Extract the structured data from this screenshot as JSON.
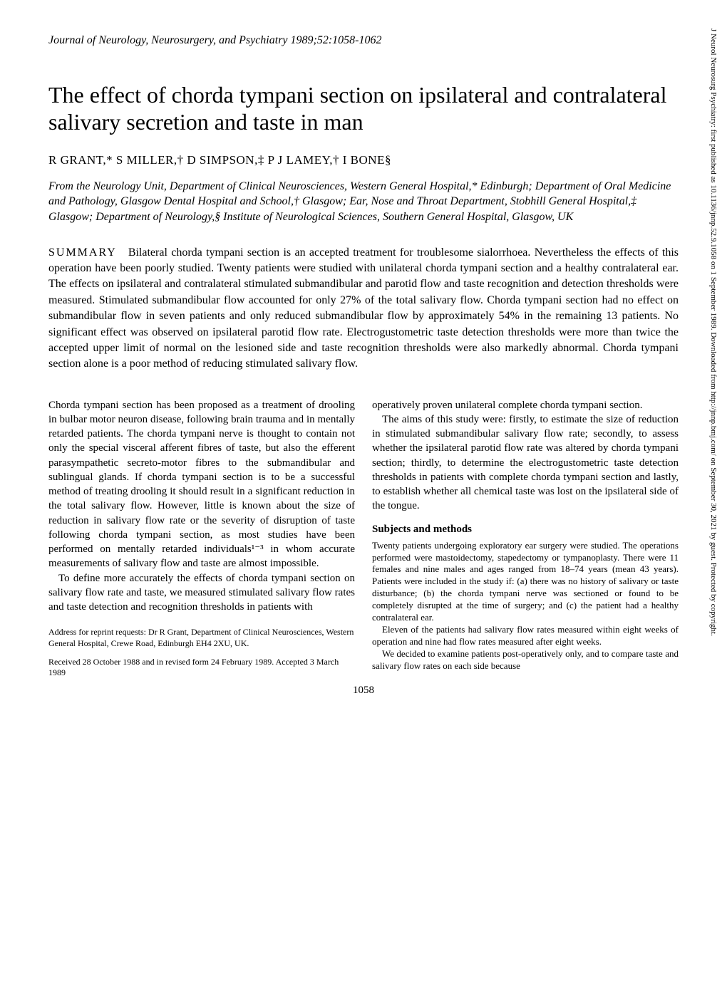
{
  "journal_header": "Journal of Neurology, Neurosurgery, and Psychiatry 1989;52:1058-1062",
  "title": "The effect of chorda tympani section on ipsilateral and contralateral salivary secretion and taste in man",
  "authors": "R GRANT,* S MILLER,† D SIMPSON,‡ P J LAMEY,† I BONE§",
  "affiliations": "From the Neurology Unit, Department of Clinical Neurosciences, Western General Hospital,* Edinburgh; Department of Oral Medicine and Pathology, Glasgow Dental Hospital and School,† Glasgow; Ear, Nose and Throat Department, Stobhill General Hospital,‡ Glasgow; Department of Neurology,§ Institute of Neurological Sciences, Southern General Hospital, Glasgow, UK",
  "summary_label": "SUMMARY",
  "summary_body": "Bilateral chorda tympani section is an accepted treatment for troublesome sialorrhoea. Nevertheless the effects of this operation have been poorly studied. Twenty patients were studied with unilateral chorda tympani section and a healthy contralateral ear. The effects on ipsilateral and contralateral stimulated submandibular and parotid flow and taste recognition and detection thresholds were measured. Stimulated submandibular flow accounted for only 27% of the total salivary flow. Chorda tympani section had no effect on submandibular flow in seven patients and only reduced submandibular flow by approximately 54% in the remaining 13 patients. No significant effect was observed on ipsilateral parotid flow rate. Electrogustometric taste detection thresholds were more than twice the accepted upper limit of normal on the lesioned side and taste recognition thresholds were also markedly abnormal. Chorda tympani section alone is a poor method of reducing stimulated salivary flow.",
  "left_column": {
    "p1": "Chorda tympani section has been proposed as a treatment of drooling in bulbar motor neuron disease, following brain trauma and in mentally retarded patients. The chorda tympani nerve is thought to contain not only the special visceral afferent fibres of taste, but also the efferent parasympathetic secreto-motor fibres to the submandibular and sublingual glands. If chorda tympani section is to be a successful method of treating drooling it should result in a significant reduction in the total salivary flow. However, little is known about the size of reduction in salivary flow rate or the severity of disruption of taste following chorda tympani section, as most studies have been performed on mentally retarded individuals¹⁻³ in whom accurate measurements of salivary flow and taste are almost impossible.",
    "p2": "To define more accurately the effects of chorda tympani section on salivary flow rate and taste, we measured stimulated salivary flow rates and taste detection and recognition thresholds in patients with",
    "footer1": "Address for reprint requests: Dr R Grant, Department of Clinical Neurosciences, Western General Hospital, Crewe Road, Edinburgh EH4 2XU, UK.",
    "footer2": "Received 28 October 1988 and in revised form 24 February 1989. Accepted 3 March 1989"
  },
  "right_column": {
    "p1": "operatively proven unilateral complete chorda tympani section.",
    "p2": "The aims of this study were: firstly, to estimate the size of reduction in stimulated submandibular salivary flow rate; secondly, to assess whether the ipsilateral parotid flow rate was altered by chorda tympani section; thirdly, to determine the electrogustometric taste detection thresholds in patients with complete chorda tympani section and lastly, to establish whether all chemical taste was lost on the ipsilateral side of the tongue.",
    "methods_heading": "Subjects and methods",
    "m1": "Twenty patients undergoing exploratory ear surgery were studied. The operations performed were mastoidectomy, stapedectomy or tympanoplasty. There were 11 females and nine males and ages ranged from 18–74 years (mean 43 years). Patients were included in the study if: (a) there was no history of salivary or taste disturbance; (b) the chorda tympani nerve was sectioned or found to be completely disrupted at the time of surgery; and (c) the patient had a healthy contralateral ear.",
    "m2": "Eleven of the patients had salivary flow rates measured within eight weeks of operation and nine had flow rates measured after eight weeks.",
    "m3": "We decided to examine patients post-operatively only, and to compare taste and salivary flow rates on each side because"
  },
  "page_number": "1058",
  "sidebar": "J Neurol Neurosurg Psychiatry: first published as 10.1136/jnnp.52.9.1058 on 1 September 1989. Downloaded from http://jnnp.bmj.com/ on September 30, 2021 by guest. Protected by copyright."
}
